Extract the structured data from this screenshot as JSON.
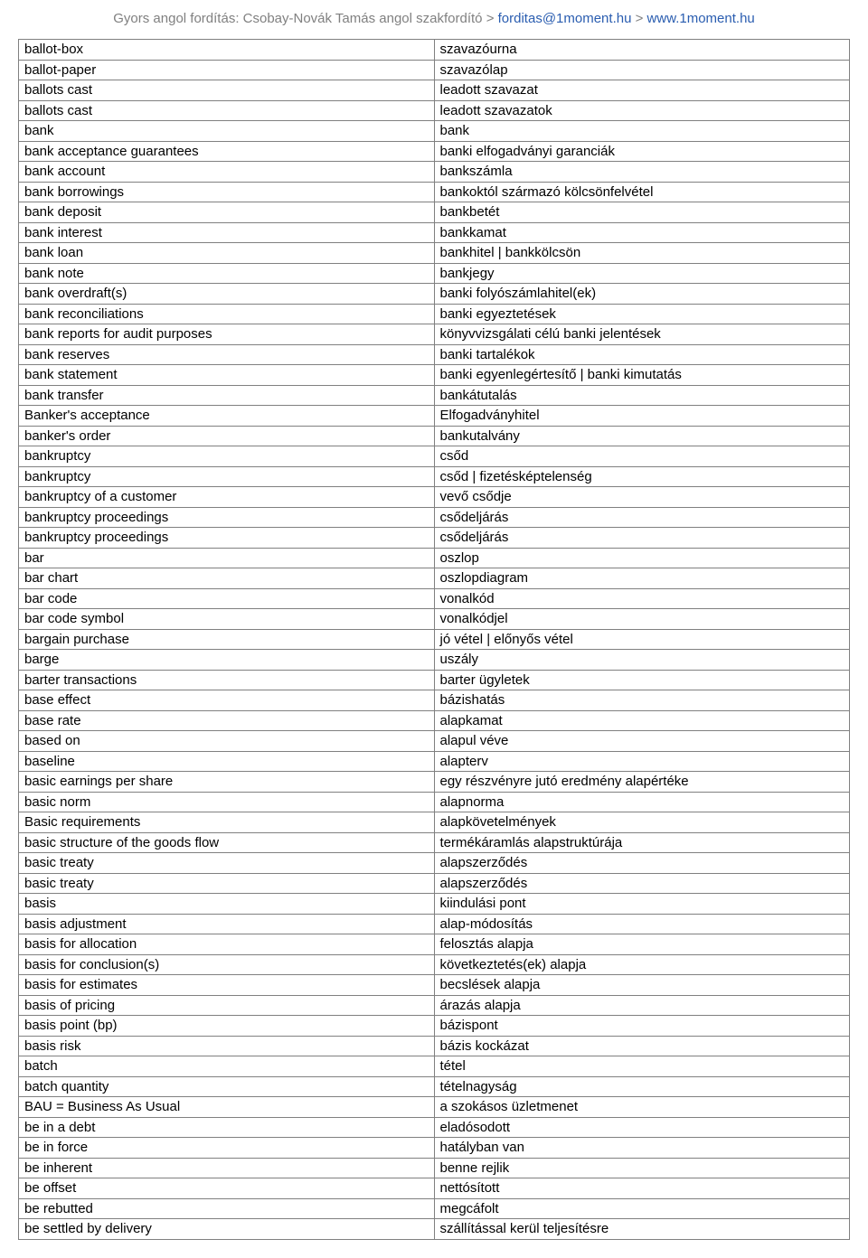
{
  "header": {
    "prefix": "Gyors angol fordítás: Csobay-Novák Tamás angol szakfordító",
    "sep": ">",
    "email": "forditas@1moment.hu",
    "site": "www.1moment.hu"
  },
  "rows": [
    [
      "ballot-box",
      "szavazóurna"
    ],
    [
      "ballot-paper",
      "szavazólap"
    ],
    [
      "ballots cast",
      "leadott szavazat"
    ],
    [
      "ballots cast",
      "leadott szavazatok"
    ],
    [
      "bank",
      "bank"
    ],
    [
      "bank acceptance guarantees",
      "banki elfogadványi garanciák"
    ],
    [
      "bank account",
      "bankszámla"
    ],
    [
      "bank borrowings",
      "bankoktól származó kölcsönfelvétel"
    ],
    [
      "bank deposit",
      "bankbetét"
    ],
    [
      "bank interest",
      "bankkamat"
    ],
    [
      "bank loan",
      "bankhitel | bankkölcsön"
    ],
    [
      "bank note",
      "bankjegy"
    ],
    [
      "bank overdraft(s)",
      "banki folyószámlahitel(ek)"
    ],
    [
      "bank reconciliations",
      "banki egyeztetések"
    ],
    [
      "bank reports for audit purposes",
      "könyvvizsgálati célú banki jelentések"
    ],
    [
      "bank reserves",
      "banki tartalékok"
    ],
    [
      "bank statement",
      "banki egyenlegértesítő | banki kimutatás"
    ],
    [
      "bank transfer",
      "bankátutalás"
    ],
    [
      "Banker's acceptance",
      "Elfogadványhitel"
    ],
    [
      "banker's order",
      "bankutalvány"
    ],
    [
      "bankruptcy",
      "csőd"
    ],
    [
      "bankruptcy",
      "csőd | fizetésképtelenség"
    ],
    [
      "bankruptcy of a customer",
      "vevő csődje"
    ],
    [
      "bankruptcy proceedings",
      "csődeljárás"
    ],
    [
      "bankruptcy proceedings",
      "csődeljárás"
    ],
    [
      "bar",
      "oszlop"
    ],
    [
      "bar chart",
      "oszlopdiagram"
    ],
    [
      "bar code",
      "vonalkód"
    ],
    [
      "bar code symbol",
      "vonalkódjel"
    ],
    [
      "bargain purchase",
      "jó vétel | előnyős vétel"
    ],
    [
      "barge",
      "uszály"
    ],
    [
      "barter transactions",
      "barter ügyletek"
    ],
    [
      "base effect",
      "bázishatás"
    ],
    [
      "base rate",
      "alapkamat"
    ],
    [
      "based on",
      "alapul véve"
    ],
    [
      "baseline",
      "alapterv"
    ],
    [
      "basic earnings per share",
      "egy részvényre jutó eredmény alapértéke"
    ],
    [
      "basic norm",
      "alapnorma"
    ],
    [
      "Basic requirements",
      "alapkövetelmények"
    ],
    [
      "basic structure of the goods flow",
      "termékáramlás alapstruktúrája"
    ],
    [
      "basic treaty",
      "alapszerződés"
    ],
    [
      "basic treaty",
      "alapszerződés"
    ],
    [
      "basis",
      "kiindulási pont"
    ],
    [
      "basis adjustment",
      "alap-módosítás"
    ],
    [
      "basis for allocation",
      "felosztás alapja"
    ],
    [
      "basis for conclusion(s)",
      "következtetés(ek) alapja"
    ],
    [
      "basis for estimates",
      "becslések alapja"
    ],
    [
      "basis of pricing",
      "árazás alapja"
    ],
    [
      "basis point (bp)",
      "bázispont"
    ],
    [
      "basis risk",
      "bázis kockázat"
    ],
    [
      "batch",
      "tétel"
    ],
    [
      "batch quantity",
      "tételnagyság"
    ],
    [
      "BAU = Business As Usual",
      "a szokásos üzletmenet"
    ],
    [
      "be in a debt",
      "eladósodott"
    ],
    [
      "be in force",
      "hatályban van"
    ],
    [
      "be inherent",
      "benne rejlik"
    ],
    [
      "be offset",
      "nettósított"
    ],
    [
      "be rebutted",
      "megcáfolt"
    ],
    [
      "be settled by delivery",
      "szállítással kerül teljesítésre"
    ]
  ]
}
